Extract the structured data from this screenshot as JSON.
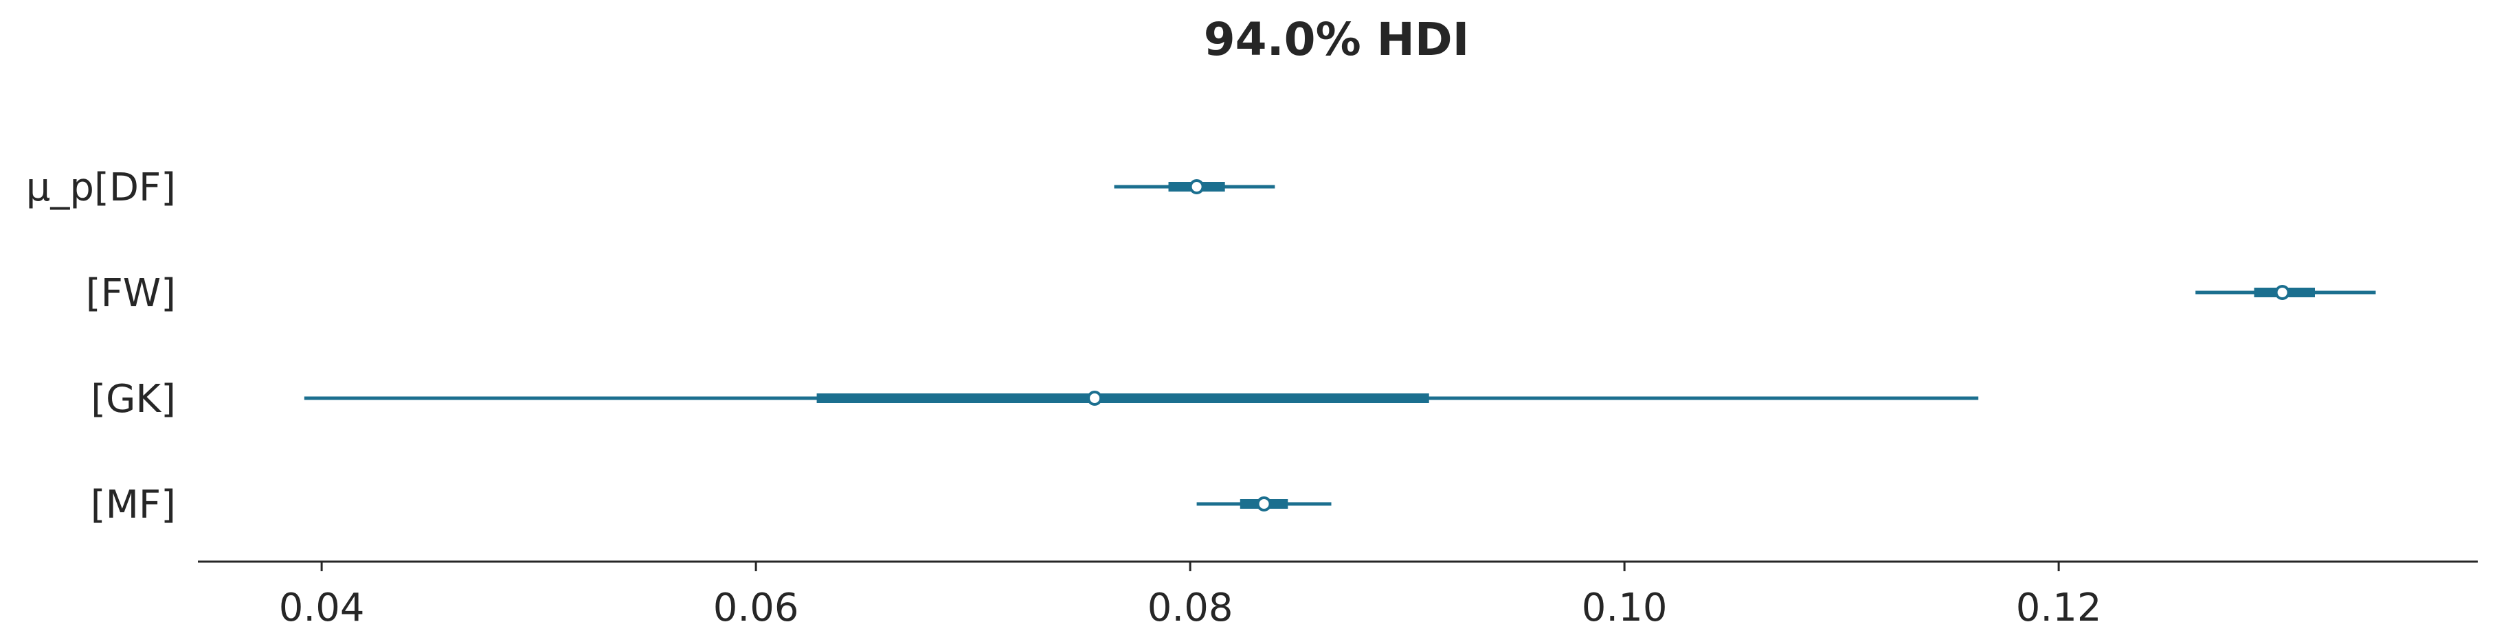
{
  "chart_data": {
    "type": "forest",
    "title": "94.0% HDI",
    "xlabel": "",
    "ylabel": "",
    "xlim": [
      0.0343,
      0.1393
    ],
    "xticks": [
      0.04,
      0.06,
      0.08,
      0.1,
      0.12
    ],
    "xtick_labels": [
      "0.04",
      "0.06",
      "0.08",
      "0.10",
      "0.12"
    ],
    "grid": false,
    "color": "#1b6f8f",
    "rows": [
      {
        "label": "μ_p[DF]",
        "hdi_low": 0.0765,
        "hdi_high": 0.0839,
        "iqr_low": 0.079,
        "iqr_high": 0.0816,
        "point": 0.0803
      },
      {
        "label": "[FW]",
        "hdi_low": 0.1263,
        "hdi_high": 0.1346,
        "iqr_low": 0.129,
        "iqr_high": 0.1318,
        "point": 0.1303
      },
      {
        "label": "[GK]",
        "hdi_low": 0.0392,
        "hdi_high": 0.1163,
        "iqr_low": 0.0628,
        "iqr_high": 0.091,
        "point": 0.0756
      },
      {
        "label": "[MF]",
        "hdi_low": 0.0803,
        "hdi_high": 0.0865,
        "iqr_low": 0.0823,
        "iqr_high": 0.0845,
        "point": 0.0834
      }
    ]
  }
}
